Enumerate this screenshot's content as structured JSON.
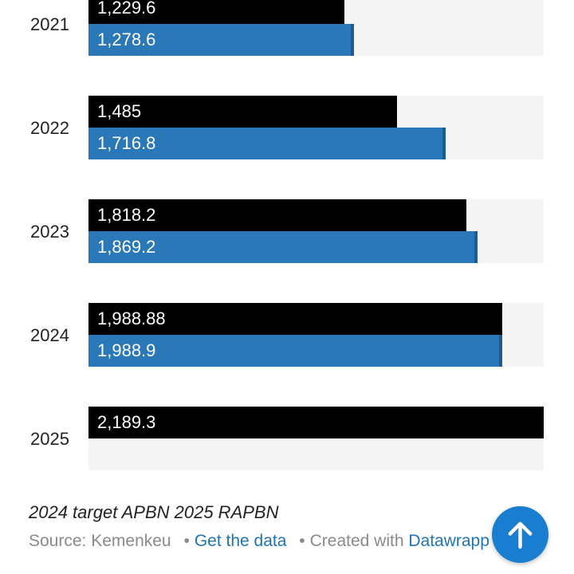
{
  "chart_data": {
    "type": "bar",
    "orientation": "horizontal",
    "categories": [
      "2021",
      "2022",
      "2023",
      "2024",
      "2025"
    ],
    "series": [
      {
        "values": [
          1229.6,
          1485,
          1818.2,
          1988.88,
          2189.3
        ],
        "labels": [
          "1,229.6",
          "1,485",
          "1,818.2",
          "1,988.88",
          "2,189.3"
        ],
        "color": "#000000"
      },
      {
        "values": [
          1278.6,
          1716.8,
          1869.2,
          1988.9,
          null
        ],
        "labels": [
          "1,278.6",
          "1,716.8",
          "1,869.2",
          "1,988.9",
          ""
        ],
        "color": "#2a78b8"
      }
    ],
    "xlim": [
      0,
      2189.3
    ],
    "grid": false
  },
  "notes": "2024 target APBN 2025 RAPBN",
  "footer": {
    "source": "Source: Kemenkeu",
    "get_data": "Get the data",
    "created_with": "Created with",
    "tool": "Datawrapp"
  },
  "icons": {
    "scroll_top": "arrow-up-icon"
  }
}
